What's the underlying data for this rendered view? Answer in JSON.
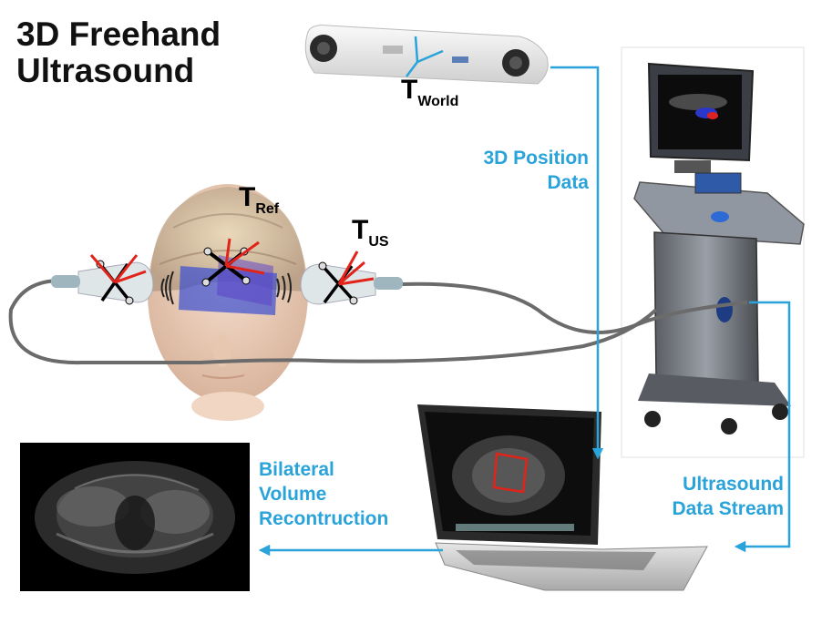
{
  "title": {
    "line1": "3D Freehand",
    "line2": "Ultrasound"
  },
  "transforms": {
    "world": {
      "main": "T",
      "sub": "World"
    },
    "ref": {
      "main": "T",
      "sub": "Ref"
    },
    "us": {
      "main": "T",
      "sub": "US"
    }
  },
  "labels": {
    "position_data": {
      "line1": "3D Position",
      "line2": "Data"
    },
    "data_stream": {
      "line1": "Ultrasound",
      "line2": "Data Stream"
    },
    "reconstruction": {
      "line1": "Bilateral",
      "line2": "Volume",
      "line3": "Recontruction"
    }
  },
  "colors": {
    "accent": "#29a3d9",
    "axis_red": "#e2231a",
    "overlay_blue": "#3b4fd0",
    "cable": "#6b6b6b"
  }
}
